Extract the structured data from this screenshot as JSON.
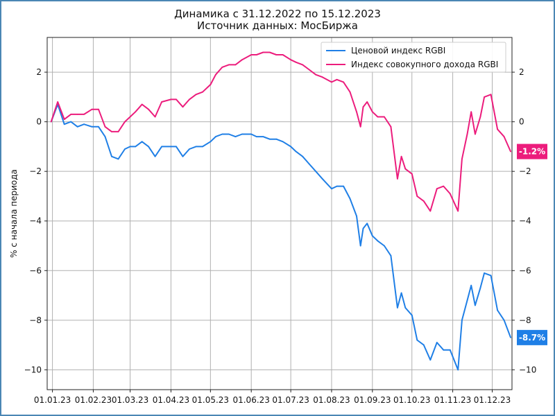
{
  "chart_data": {
    "type": "line",
    "title": "Динамика с 31.12.2022 по 15.12.2023",
    "subtitle": "Источник данных: МосБиржа",
    "ylabel": "% с начала периода",
    "xlabel": "",
    "ylim": [
      -10.8,
      3.4
    ],
    "yticks": [
      2,
      0,
      -2,
      -4,
      -6,
      -8,
      -10
    ],
    "grid": true,
    "legend_position": "top-right",
    "x_tick_labels": [
      "01.01.23",
      "01.02.23",
      "01.03.23",
      "01.04.23",
      "01.05.23",
      "01.06.23",
      "01.07.23",
      "01.08.23",
      "01.09.23",
      "01.10.23",
      "01.11.23",
      "01.12.23"
    ],
    "series": [
      {
        "name": "Ценовой индекс RGBI",
        "color": "#1f7fe6",
        "last_label": "-8.7%",
        "points": [
          [
            "2022-12-31",
            0.0
          ],
          [
            "2023-01-05",
            0.7
          ],
          [
            "2023-01-10",
            -0.1
          ],
          [
            "2023-01-15",
            0.0
          ],
          [
            "2023-01-20",
            -0.2
          ],
          [
            "2023-01-25",
            -0.1
          ],
          [
            "2023-01-31",
            -0.2
          ],
          [
            "2023-02-05",
            -0.2
          ],
          [
            "2023-02-10",
            -0.6
          ],
          [
            "2023-02-15",
            -1.4
          ],
          [
            "2023-02-20",
            -1.5
          ],
          [
            "2023-02-25",
            -1.1
          ],
          [
            "2023-03-01",
            -1.0
          ],
          [
            "2023-03-05",
            -1.0
          ],
          [
            "2023-03-10",
            -0.8
          ],
          [
            "2023-03-15",
            -1.0
          ],
          [
            "2023-03-20",
            -1.4
          ],
          [
            "2023-03-25",
            -1.0
          ],
          [
            "2023-04-01",
            -1.0
          ],
          [
            "2023-04-05",
            -1.0
          ],
          [
            "2023-04-10",
            -1.4
          ],
          [
            "2023-04-15",
            -1.1
          ],
          [
            "2023-04-20",
            -1.0
          ],
          [
            "2023-04-25",
            -1.0
          ],
          [
            "2023-05-01",
            -0.8
          ],
          [
            "2023-05-05",
            -0.6
          ],
          [
            "2023-05-10",
            -0.5
          ],
          [
            "2023-05-15",
            -0.5
          ],
          [
            "2023-05-20",
            -0.6
          ],
          [
            "2023-05-25",
            -0.5
          ],
          [
            "2023-06-01",
            -0.5
          ],
          [
            "2023-06-05",
            -0.6
          ],
          [
            "2023-06-10",
            -0.6
          ],
          [
            "2023-06-15",
            -0.7
          ],
          [
            "2023-06-20",
            -0.7
          ],
          [
            "2023-06-25",
            -0.8
          ],
          [
            "2023-07-01",
            -1.0
          ],
          [
            "2023-07-05",
            -1.2
          ],
          [
            "2023-07-10",
            -1.4
          ],
          [
            "2023-07-15",
            -1.7
          ],
          [
            "2023-07-20",
            -2.0
          ],
          [
            "2023-07-25",
            -2.3
          ],
          [
            "2023-08-01",
            -2.7
          ],
          [
            "2023-08-05",
            -2.6
          ],
          [
            "2023-08-10",
            -2.6
          ],
          [
            "2023-08-15",
            -3.1
          ],
          [
            "2023-08-20",
            -3.8
          ],
          [
            "2023-08-23",
            -5.0
          ],
          [
            "2023-08-25",
            -4.3
          ],
          [
            "2023-08-28",
            -4.1
          ],
          [
            "2023-09-01",
            -4.6
          ],
          [
            "2023-09-05",
            -4.8
          ],
          [
            "2023-09-10",
            -5.0
          ],
          [
            "2023-09-15",
            -5.4
          ],
          [
            "2023-09-20",
            -7.5
          ],
          [
            "2023-09-23",
            -6.9
          ],
          [
            "2023-09-26",
            -7.5
          ],
          [
            "2023-10-01",
            -7.8
          ],
          [
            "2023-10-05",
            -8.8
          ],
          [
            "2023-10-10",
            -9.0
          ],
          [
            "2023-10-15",
            -9.6
          ],
          [
            "2023-10-20",
            -8.9
          ],
          [
            "2023-10-25",
            -9.2
          ],
          [
            "2023-10-30",
            -9.2
          ],
          [
            "2023-11-05",
            -10.0
          ],
          [
            "2023-11-08",
            -8.0
          ],
          [
            "2023-11-12",
            -7.2
          ],
          [
            "2023-11-15",
            -6.6
          ],
          [
            "2023-11-18",
            -7.4
          ],
          [
            "2023-11-22",
            -6.7
          ],
          [
            "2023-11-25",
            -6.1
          ],
          [
            "2023-11-30",
            -6.2
          ],
          [
            "2023-12-05",
            -7.6
          ],
          [
            "2023-12-10",
            -8.0
          ],
          [
            "2023-12-15",
            -8.7
          ]
        ]
      },
      {
        "name": "Индекс совокупного дохода RGBI",
        "color": "#ec1c7c",
        "last_label": "-1.2%",
        "points": [
          [
            "2022-12-31",
            0.0
          ],
          [
            "2023-01-05",
            0.8
          ],
          [
            "2023-01-10",
            0.1
          ],
          [
            "2023-01-15",
            0.3
          ],
          [
            "2023-01-20",
            0.3
          ],
          [
            "2023-01-25",
            0.3
          ],
          [
            "2023-01-31",
            0.5
          ],
          [
            "2023-02-05",
            0.5
          ],
          [
            "2023-02-10",
            -0.2
          ],
          [
            "2023-02-15",
            -0.4
          ],
          [
            "2023-02-20",
            -0.4
          ],
          [
            "2023-02-25",
            0.0
          ],
          [
            "2023-03-01",
            0.2
          ],
          [
            "2023-03-05",
            0.4
          ],
          [
            "2023-03-10",
            0.7
          ],
          [
            "2023-03-15",
            0.5
          ],
          [
            "2023-03-20",
            0.2
          ],
          [
            "2023-03-25",
            0.8
          ],
          [
            "2023-04-01",
            0.9
          ],
          [
            "2023-04-05",
            0.9
          ],
          [
            "2023-04-10",
            0.6
          ],
          [
            "2023-04-15",
            0.9
          ],
          [
            "2023-04-20",
            1.1
          ],
          [
            "2023-04-25",
            1.2
          ],
          [
            "2023-05-01",
            1.5
          ],
          [
            "2023-05-05",
            1.9
          ],
          [
            "2023-05-10",
            2.2
          ],
          [
            "2023-05-15",
            2.3
          ],
          [
            "2023-05-20",
            2.3
          ],
          [
            "2023-05-25",
            2.5
          ],
          [
            "2023-06-01",
            2.7
          ],
          [
            "2023-06-05",
            2.7
          ],
          [
            "2023-06-10",
            2.8
          ],
          [
            "2023-06-15",
            2.8
          ],
          [
            "2023-06-20",
            2.7
          ],
          [
            "2023-06-25",
            2.7
          ],
          [
            "2023-07-01",
            2.5
          ],
          [
            "2023-07-05",
            2.4
          ],
          [
            "2023-07-10",
            2.3
          ],
          [
            "2023-07-15",
            2.1
          ],
          [
            "2023-07-20",
            1.9
          ],
          [
            "2023-07-25",
            1.8
          ],
          [
            "2023-08-01",
            1.6
          ],
          [
            "2023-08-05",
            1.7
          ],
          [
            "2023-08-10",
            1.6
          ],
          [
            "2023-08-15",
            1.2
          ],
          [
            "2023-08-20",
            0.4
          ],
          [
            "2023-08-23",
            -0.2
          ],
          [
            "2023-08-25",
            0.6
          ],
          [
            "2023-08-28",
            0.8
          ],
          [
            "2023-09-01",
            0.4
          ],
          [
            "2023-09-05",
            0.2
          ],
          [
            "2023-09-10",
            0.2
          ],
          [
            "2023-09-15",
            -0.2
          ],
          [
            "2023-09-20",
            -2.3
          ],
          [
            "2023-09-23",
            -1.4
          ],
          [
            "2023-09-26",
            -1.9
          ],
          [
            "2023-10-01",
            -2.1
          ],
          [
            "2023-10-05",
            -3.0
          ],
          [
            "2023-10-10",
            -3.2
          ],
          [
            "2023-10-15",
            -3.6
          ],
          [
            "2023-10-20",
            -2.7
          ],
          [
            "2023-10-25",
            -2.6
          ],
          [
            "2023-10-30",
            -2.9
          ],
          [
            "2023-11-05",
            -3.6
          ],
          [
            "2023-11-08",
            -1.5
          ],
          [
            "2023-11-12",
            -0.5
          ],
          [
            "2023-11-15",
            0.4
          ],
          [
            "2023-11-18",
            -0.5
          ],
          [
            "2023-11-22",
            0.2
          ],
          [
            "2023-11-25",
            1.0
          ],
          [
            "2023-11-30",
            1.1
          ],
          [
            "2023-12-05",
            -0.3
          ],
          [
            "2023-12-10",
            -0.6
          ],
          [
            "2023-12-15",
            -1.2
          ]
        ]
      }
    ]
  }
}
